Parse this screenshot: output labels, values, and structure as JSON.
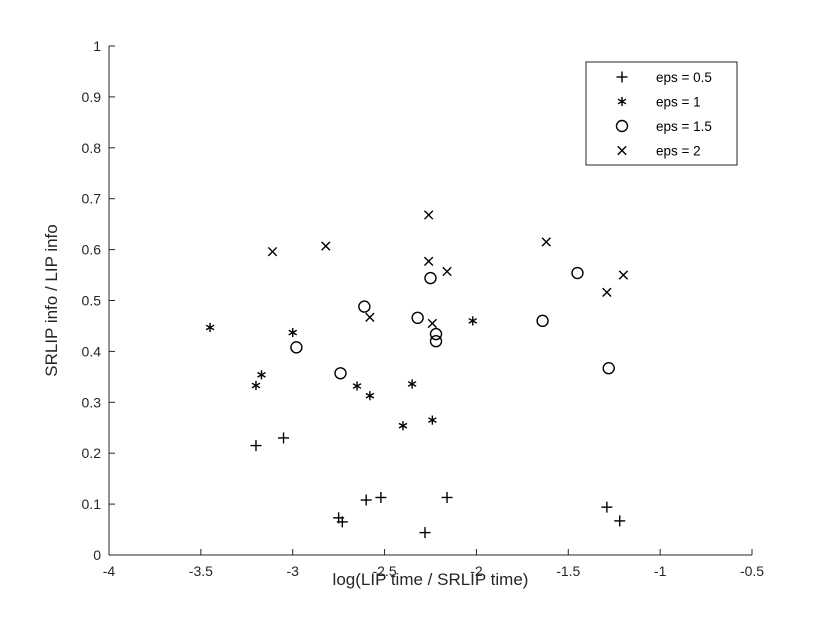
{
  "chart_data": {
    "type": "scatter",
    "title": "",
    "xlabel": "log(LIP time / SRLIP time)",
    "ylabel": "SRLIP info / LIP info",
    "xlim": [
      -4,
      -0.5
    ],
    "ylim": [
      0,
      1
    ],
    "xticks": [
      -4,
      -3.5,
      -3,
      -2.5,
      -2,
      -1.5,
      -1,
      -0.5
    ],
    "xtick_labels": [
      "-4",
      "-3.5",
      "-3",
      "-2.5",
      "-2",
      "-1.5",
      "-1",
      "-0.5"
    ],
    "yticks": [
      0,
      0.1,
      0.2,
      0.3,
      0.4,
      0.5,
      0.6,
      0.7,
      0.8,
      0.9,
      1
    ],
    "ytick_labels": [
      "0",
      "0.1",
      "0.2",
      "0.3",
      "0.4",
      "0.5",
      "0.6",
      "0.7",
      "0.8",
      "0.9",
      "1"
    ],
    "grid": false,
    "legend_position": "top-right",
    "series": [
      {
        "name": "eps = 0.5",
        "marker": "plus",
        "points": [
          [
            -3.2,
            0.215
          ],
          [
            -3.05,
            0.23
          ],
          [
            -2.75,
            0.073
          ],
          [
            -2.73,
            0.065
          ],
          [
            -2.6,
            0.108
          ],
          [
            -2.52,
            0.113
          ],
          [
            -2.28,
            0.044
          ],
          [
            -2.16,
            0.113
          ],
          [
            -1.29,
            0.094
          ],
          [
            -1.22,
            0.067
          ]
        ]
      },
      {
        "name": "eps = 1",
        "marker": "asterisk",
        "points": [
          [
            -3.45,
            0.447
          ],
          [
            -3.2,
            0.333
          ],
          [
            -3.17,
            0.354
          ],
          [
            -3.0,
            0.437
          ],
          [
            -2.65,
            0.332
          ],
          [
            -2.58,
            0.313
          ],
          [
            -2.4,
            0.254
          ],
          [
            -2.35,
            0.336
          ],
          [
            -2.24,
            0.265
          ],
          [
            -2.02,
            0.46
          ]
        ]
      },
      {
        "name": "eps = 1.5",
        "marker": "circle",
        "points": [
          [
            -2.98,
            0.408
          ],
          [
            -2.74,
            0.357
          ],
          [
            -2.61,
            0.488
          ],
          [
            -2.32,
            0.466
          ],
          [
            -2.25,
            0.544
          ],
          [
            -2.22,
            0.434
          ],
          [
            -2.22,
            0.42
          ],
          [
            -1.64,
            0.46
          ],
          [
            -1.45,
            0.554
          ],
          [
            -1.28,
            0.367
          ]
        ]
      },
      {
        "name": "eps = 2",
        "marker": "x",
        "points": [
          [
            -3.11,
            0.596
          ],
          [
            -2.82,
            0.607
          ],
          [
            -2.58,
            0.467
          ],
          [
            -2.26,
            0.668
          ],
          [
            -2.26,
            0.577
          ],
          [
            -2.24,
            0.455
          ],
          [
            -2.16,
            0.557
          ],
          [
            -1.62,
            0.615
          ],
          [
            -1.29,
            0.516
          ],
          [
            -1.2,
            0.55
          ]
        ]
      }
    ]
  }
}
